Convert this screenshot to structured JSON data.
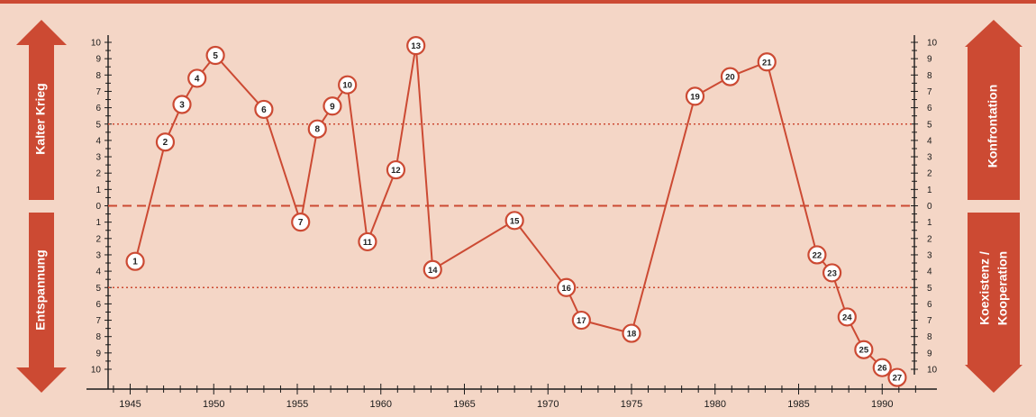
{
  "colors": {
    "background": "#f4d6c6",
    "accent": "#cc4a33",
    "axis": "#1a1a1a",
    "marker_fill": "#ffffff"
  },
  "left_labels": {
    "top": "Kalter Krieg",
    "bottom": "Entspannung"
  },
  "right_labels": {
    "top": "Konfrontation",
    "bottom_line1": "Koexistenz /",
    "bottom_line2": "Kooperation"
  },
  "chart_data": {
    "type": "line",
    "title": "",
    "xlabel": "",
    "ylabel": "",
    "xlim": [
      1944,
      1992
    ],
    "ylim": [
      -10,
      10
    ],
    "x_ticks": [
      1945,
      1950,
      1955,
      1960,
      1965,
      1970,
      1975,
      1980,
      1985,
      1990
    ],
    "y_tick_labels": [
      "10",
      "9",
      "8",
      "7",
      "6",
      "5",
      "4",
      "3",
      "2",
      "1",
      "0",
      "1",
      "2",
      "3",
      "4",
      "5",
      "6",
      "7",
      "8",
      "9",
      "10"
    ],
    "reference_lines": [
      {
        "y": 5,
        "style": "dotted"
      },
      {
        "y": 0,
        "style": "dashed"
      },
      {
        "y": -5,
        "style": "dotted"
      }
    ],
    "grid": false,
    "points": [
      {
        "label": "1",
        "x": 1945.3,
        "y": -3.4
      },
      {
        "label": "2",
        "x": 1947.1,
        "y": 3.9
      },
      {
        "label": "3",
        "x": 1948.1,
        "y": 6.2
      },
      {
        "label": "4",
        "x": 1949.0,
        "y": 7.8
      },
      {
        "label": "5",
        "x": 1950.1,
        "y": 9.2
      },
      {
        "label": "6",
        "x": 1953.0,
        "y": 5.9
      },
      {
        "label": "7",
        "x": 1955.2,
        "y": -1.0
      },
      {
        "label": "8",
        "x": 1956.2,
        "y": 4.7
      },
      {
        "label": "9",
        "x": 1957.1,
        "y": 6.1
      },
      {
        "label": "10",
        "x": 1958.0,
        "y": 7.4
      },
      {
        "label": "11",
        "x": 1959.2,
        "y": -2.2
      },
      {
        "label": "12",
        "x": 1960.9,
        "y": 2.2
      },
      {
        "label": "13",
        "x": 1962.1,
        "y": 9.8
      },
      {
        "label": "14",
        "x": 1963.1,
        "y": -3.9
      },
      {
        "label": "15",
        "x": 1968.0,
        "y": -0.9
      },
      {
        "label": "16",
        "x": 1971.1,
        "y": -5.0
      },
      {
        "label": "17",
        "x": 1972.0,
        "y": -7.0
      },
      {
        "label": "18",
        "x": 1975.0,
        "y": -7.8
      },
      {
        "label": "19",
        "x": 1978.8,
        "y": 6.7
      },
      {
        "label": "20",
        "x": 1980.9,
        "y": 7.9
      },
      {
        "label": "21",
        "x": 1983.1,
        "y": 8.8
      },
      {
        "label": "22",
        "x": 1986.1,
        "y": -3.0
      },
      {
        "label": "23",
        "x": 1987.0,
        "y": -4.1
      },
      {
        "label": "24",
        "x": 1987.9,
        "y": -6.8
      },
      {
        "label": "25",
        "x": 1988.9,
        "y": -8.8
      },
      {
        "label": "26",
        "x": 1990.0,
        "y": -9.9
      },
      {
        "label": "27",
        "x": 1990.9,
        "y": -10.5
      }
    ]
  }
}
